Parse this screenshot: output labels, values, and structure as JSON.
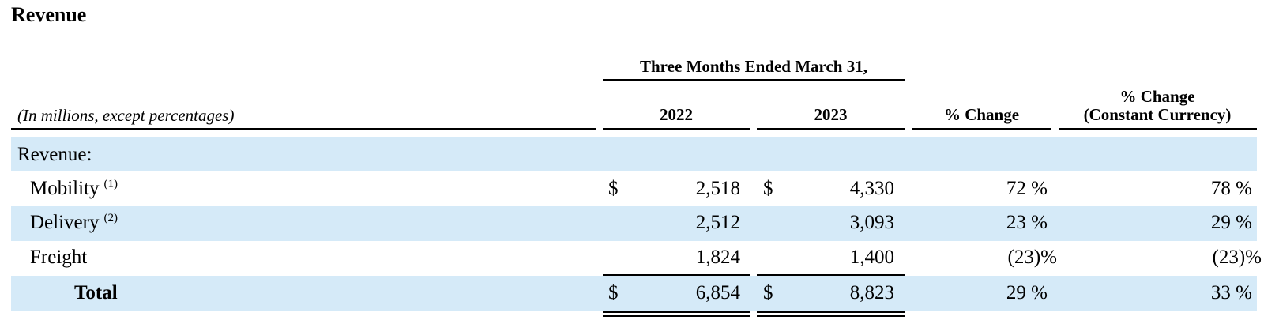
{
  "title": "Revenue",
  "table": {
    "group_header": "Three Months Ended March 31,",
    "sub_label": "(In millions, except percentages)",
    "columns": {
      "y2022": "2022",
      "y2023": "2023",
      "pct_change": "% Change",
      "pct_cc_line1": "% Change",
      "pct_cc_line2": "(Constant Currency)"
    },
    "section_label": "Revenue:",
    "currency_symbol": "$",
    "rows": [
      {
        "label": "Mobility",
        "footnote": "(1)",
        "v2022": "2,518",
        "v2023": "4,330",
        "pct": "72 %",
        "pct_cc": "78 %"
      },
      {
        "label": "Delivery",
        "footnote": "(2)",
        "v2022": "2,512",
        "v2023": "3,093",
        "pct": "23 %",
        "pct_cc": "29 %"
      },
      {
        "label": "Freight",
        "footnote": "",
        "v2022": "1,824",
        "v2023": "1,400",
        "pct": "(23)%",
        "pct_cc": "(23)%"
      }
    ],
    "total": {
      "label": "Total",
      "v2022": "6,854",
      "v2023": "8,823",
      "pct": "29 %",
      "pct_cc": "33 %"
    }
  },
  "colors": {
    "band": "#d5eaf8",
    "text": "#000000"
  }
}
